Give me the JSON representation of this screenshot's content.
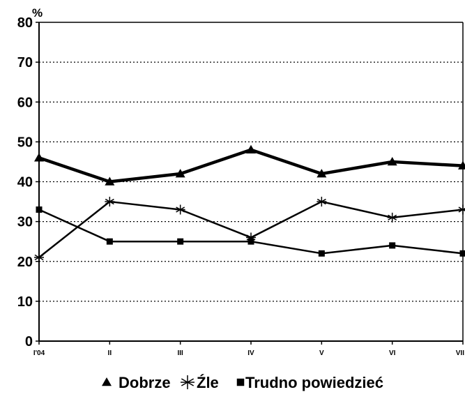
{
  "chart_data": {
    "type": "line",
    "y_unit": "%",
    "ylim": [
      0,
      80
    ],
    "y_ticks": [
      "0",
      "10",
      "20",
      "30",
      "40",
      "50",
      "60",
      "70",
      "80"
    ],
    "categories": [
      "I'04",
      "II",
      "III",
      "IV",
      "V",
      "VI",
      "VII"
    ],
    "grid": true,
    "legend_position": "bottom",
    "series": [
      {
        "name": "Dobrze",
        "marker": "triangle",
        "values": [
          46,
          40,
          42,
          48,
          42,
          45,
          44
        ]
      },
      {
        "name": "Źle",
        "marker": "asterisk",
        "values": [
          21,
          35,
          33,
          26,
          35,
          31,
          33
        ]
      },
      {
        "name": "Trudno powiedzieć",
        "marker": "square",
        "values": [
          33,
          25,
          25,
          25,
          22,
          24,
          22
        ]
      }
    ],
    "colors": {
      "line": "#000000",
      "grid": "#000000",
      "background": "#ffffff"
    }
  }
}
